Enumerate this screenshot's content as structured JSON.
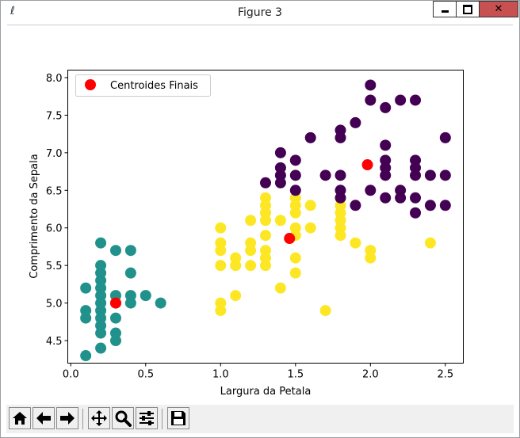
{
  "window": {
    "title": "Figure 3"
  },
  "toolbar": {
    "buttons": [
      {
        "name": "home-button",
        "icon": "home-icon"
      },
      {
        "name": "back-button",
        "icon": "arrow-left-icon"
      },
      {
        "name": "forward-button",
        "icon": "arrow-right-icon"
      },
      {
        "name": "pan-button",
        "icon": "move-icon"
      },
      {
        "name": "zoom-button",
        "icon": "magnifier-icon"
      },
      {
        "name": "configure-subplots-button",
        "icon": "sliders-icon"
      },
      {
        "name": "save-button",
        "icon": "floppy-icon"
      }
    ]
  },
  "chart_data": {
    "type": "scatter",
    "title": "",
    "xlabel": "Largura da Petala",
    "ylabel": "Comprimento da Sepala",
    "xlim": [
      -0.02,
      2.62
    ],
    "ylim": [
      4.2,
      8.1
    ],
    "xticks": [
      "0.0",
      "0.5",
      "1.0",
      "1.5",
      "2.0",
      "2.5"
    ],
    "yticks": [
      "4.5",
      "5.0",
      "5.5",
      "6.0",
      "6.5",
      "7.0",
      "7.5",
      "8.0"
    ],
    "legend": {
      "position": "top-left",
      "entries": [
        "Centroides Finais"
      ]
    },
    "colors": {
      "cluster_a": "#440154",
      "cluster_b": "#21918c",
      "cluster_c": "#fde725",
      "centroid": "#ff0000"
    },
    "series": [
      {
        "color": "#21918c",
        "points": [
          [
            0.1,
            4.3
          ],
          [
            0.1,
            4.8
          ],
          [
            0.1,
            4.9
          ],
          [
            0.1,
            5.2
          ],
          [
            0.2,
            4.4
          ],
          [
            0.2,
            4.6
          ],
          [
            0.2,
            4.7
          ],
          [
            0.2,
            4.8
          ],
          [
            0.2,
            4.9
          ],
          [
            0.2,
            5.0
          ],
          [
            0.2,
            5.1
          ],
          [
            0.2,
            5.2
          ],
          [
            0.2,
            5.3
          ],
          [
            0.2,
            5.4
          ],
          [
            0.2,
            5.5
          ],
          [
            0.2,
            5.8
          ],
          [
            0.3,
            4.5
          ],
          [
            0.3,
            4.6
          ],
          [
            0.3,
            4.8
          ],
          [
            0.3,
            5.0
          ],
          [
            0.3,
            5.1
          ],
          [
            0.3,
            5.7
          ],
          [
            0.4,
            5.0
          ],
          [
            0.4,
            5.1
          ],
          [
            0.4,
            5.4
          ],
          [
            0.4,
            5.7
          ],
          [
            0.5,
            5.1
          ],
          [
            0.6,
            5.0
          ]
        ]
      },
      {
        "color": "#fde725",
        "points": [
          [
            1.0,
            4.9
          ],
          [
            1.0,
            5.0
          ],
          [
            1.1,
            5.1
          ],
          [
            1.0,
            5.5
          ],
          [
            1.0,
            5.7
          ],
          [
            1.0,
            5.8
          ],
          [
            1.0,
            6.0
          ],
          [
            1.1,
            5.5
          ],
          [
            1.1,
            5.6
          ],
          [
            1.2,
            5.5
          ],
          [
            1.2,
            5.7
          ],
          [
            1.2,
            5.8
          ],
          [
            1.2,
            6.1
          ],
          [
            1.3,
            5.5
          ],
          [
            1.3,
            5.6
          ],
          [
            1.3,
            5.7
          ],
          [
            1.3,
            6.2
          ],
          [
            1.3,
            6.3
          ],
          [
            1.3,
            6.4
          ],
          [
            1.3,
            5.9
          ],
          [
            1.3,
            6.1
          ],
          [
            1.4,
            5.2
          ],
          [
            1.4,
            6.1
          ],
          [
            1.5,
            5.4
          ],
          [
            1.5,
            5.6
          ],
          [
            1.5,
            6.0
          ],
          [
            1.5,
            6.2
          ],
          [
            1.5,
            6.3
          ],
          [
            1.5,
            6.4
          ],
          [
            1.5,
            5.9
          ],
          [
            1.6,
            6.0
          ],
          [
            1.6,
            6.3
          ],
          [
            1.7,
            4.9
          ],
          [
            1.8,
            5.9
          ],
          [
            1.8,
            6.0
          ],
          [
            1.8,
            6.1
          ],
          [
            1.8,
            6.2
          ],
          [
            1.8,
            6.3
          ],
          [
            1.9,
            5.8
          ],
          [
            2.0,
            5.6
          ],
          [
            2.0,
            5.7
          ],
          [
            2.4,
            5.8
          ]
        ]
      },
      {
        "color": "#440154",
        "points": [
          [
            1.3,
            6.6
          ],
          [
            1.4,
            6.6
          ],
          [
            1.4,
            6.7
          ],
          [
            1.4,
            6.8
          ],
          [
            1.4,
            7.0
          ],
          [
            1.5,
            6.5
          ],
          [
            1.5,
            6.7
          ],
          [
            1.5,
            6.9
          ],
          [
            1.6,
            7.2
          ],
          [
            1.7,
            6.7
          ],
          [
            1.8,
            6.4
          ],
          [
            1.8,
            6.5
          ],
          [
            1.8,
            6.7
          ],
          [
            1.8,
            7.2
          ],
          [
            1.8,
            7.3
          ],
          [
            1.9,
            6.3
          ],
          [
            1.9,
            7.4
          ],
          [
            2.0,
            6.5
          ],
          [
            2.0,
            7.7
          ],
          [
            2.0,
            7.9
          ],
          [
            2.1,
            6.4
          ],
          [
            2.1,
            6.7
          ],
          [
            2.1,
            6.8
          ],
          [
            2.1,
            6.9
          ],
          [
            2.1,
            7.1
          ],
          [
            2.1,
            7.6
          ],
          [
            2.2,
            6.4
          ],
          [
            2.2,
            6.5
          ],
          [
            2.2,
            7.7
          ],
          [
            2.3,
            6.2
          ],
          [
            2.3,
            6.4
          ],
          [
            2.3,
            6.7
          ],
          [
            2.3,
            6.8
          ],
          [
            2.3,
            6.9
          ],
          [
            2.3,
            7.7
          ],
          [
            2.4,
            6.3
          ],
          [
            2.4,
            6.7
          ],
          [
            2.5,
            6.3
          ],
          [
            2.5,
            6.7
          ],
          [
            2.5,
            7.2
          ]
        ]
      },
      {
        "name": "Centroides Finais",
        "color": "#ff0000",
        "points": [
          [
            0.3,
            5.0
          ],
          [
            1.46,
            5.86
          ],
          [
            1.98,
            6.84
          ]
        ]
      }
    ]
  }
}
